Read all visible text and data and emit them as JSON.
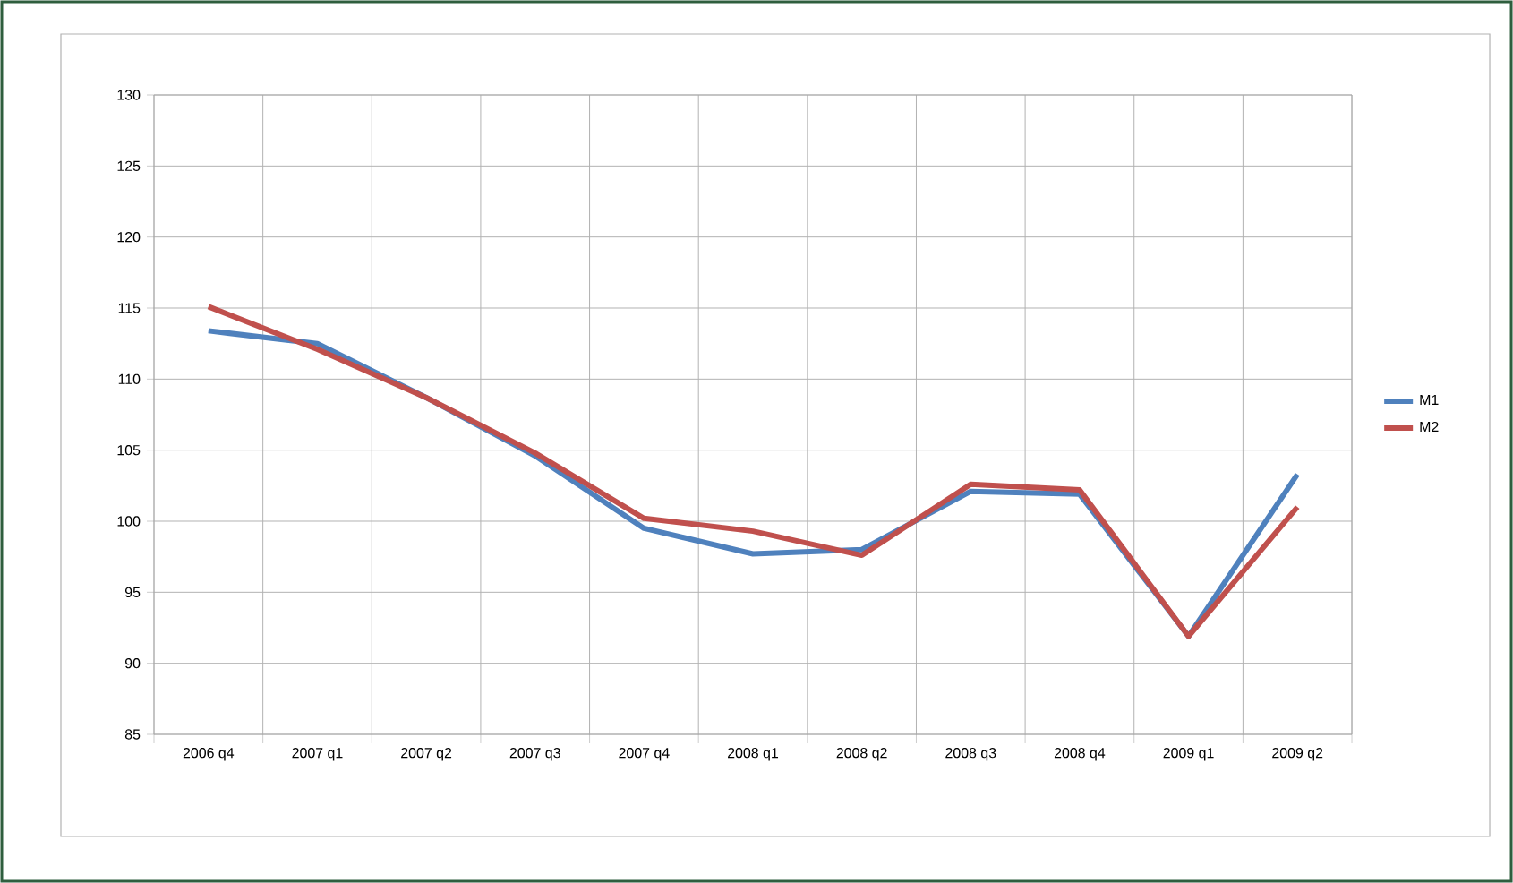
{
  "chart_data": {
    "type": "line",
    "categories": [
      "2006 q4",
      "2007 q1",
      "2007 q2",
      "2007 q3",
      "2007 q4",
      "2008 q1",
      "2008 q2",
      "2008 q3",
      "2008 q4",
      "2009 q1",
      "2009 q2"
    ],
    "series": [
      {
        "name": "M1",
        "color": "#4f81bd",
        "values": [
          113.4,
          112.5,
          108.7,
          104.6,
          99.5,
          97.7,
          98.0,
          102.1,
          101.9,
          91.9,
          103.3
        ]
      },
      {
        "name": "M2",
        "color": "#c0504d",
        "values": [
          115.1,
          112.1,
          108.7,
          104.8,
          100.2,
          99.3,
          97.6,
          102.6,
          102.2,
          91.9,
          101.0
        ]
      }
    ],
    "ylim": [
      85,
      130
    ],
    "yticks": [
      85,
      90,
      95,
      100,
      105,
      110,
      115,
      120,
      125,
      130
    ],
    "grid": true,
    "legend": "right",
    "marker": "none",
    "line_style": "solid"
  }
}
